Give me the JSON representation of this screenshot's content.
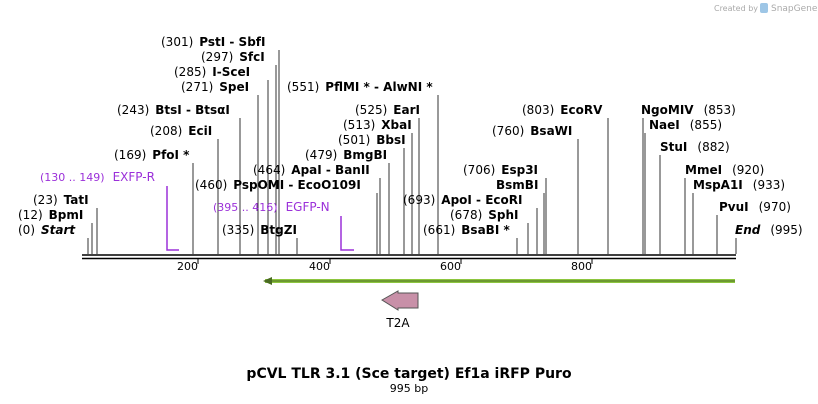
{
  "watermark": {
    "prefix": "Created by",
    "brand": "SnapGene"
  },
  "sites": [
    {
      "position": "(301)",
      "name": "PstI - SbfI"
    },
    {
      "position": "(297)",
      "name": "SfcI"
    },
    {
      "position": "(285)",
      "name": "I-SceI"
    },
    {
      "position": "(271)",
      "name": "SpeI"
    },
    {
      "position": "(243)",
      "name": "BtsI - BtsαI"
    },
    {
      "position": "(208)",
      "name": "EciI"
    },
    {
      "position": "(169)",
      "name": "PfoI *"
    },
    {
      "position": "(23)",
      "name": "TatI"
    },
    {
      "position": "(12)",
      "name": "BpmI"
    },
    {
      "position": "(0)",
      "name": "Start"
    },
    {
      "position": "(551)",
      "name": "PflMI * - AlwNI *"
    },
    {
      "position": "(525)",
      "name": "EarI"
    },
    {
      "position": "(513)",
      "name": "XbaI"
    },
    {
      "position": "(501)",
      "name": "BbsI"
    },
    {
      "position": "(479)",
      "name": "BmgBI"
    },
    {
      "position": "(464)",
      "name": "ApaI - BanII"
    },
    {
      "position": "(460)",
      "name": "PspOMI - EcoO109I"
    },
    {
      "position": "(335)",
      "name": "BtgZI"
    },
    {
      "position": "(803)",
      "name": "EcoRV"
    },
    {
      "position": "(760)",
      "name": "BsaWI"
    },
    {
      "position": "(706)",
      "name": "Esp3I"
    },
    {
      "name": "BsmBI"
    },
    {
      "position": "(693)",
      "name": "ApoI - EcoRI"
    },
    {
      "position": "(678)",
      "name": "SphI"
    },
    {
      "position": "(661)",
      "name": "BsaBI *"
    },
    {
      "position": "(853)",
      "name": "NgoMIV"
    },
    {
      "position": "(855)",
      "name": "NaeI"
    },
    {
      "position": "(882)",
      "name": "StuI"
    },
    {
      "position": "(920)",
      "name": "MmeI"
    },
    {
      "position": "(933)",
      "name": "MspA1I"
    },
    {
      "position": "(970)",
      "name": "PvuI"
    },
    {
      "position": "(995)",
      "name": "End"
    }
  ],
  "primers": [
    {
      "range": "(130 .. 149)",
      "name": "EXFP-R"
    },
    {
      "range": "(395 .. 416)",
      "name": "EGFP-N"
    }
  ],
  "ruler": [
    "200",
    "400",
    "600",
    "800"
  ],
  "features": [
    {
      "name": "T2A"
    }
  ],
  "title": "pCVL TLR 3.1 (Sce target) Ef1a iRFP Puro",
  "subtitle": "995 bp"
}
